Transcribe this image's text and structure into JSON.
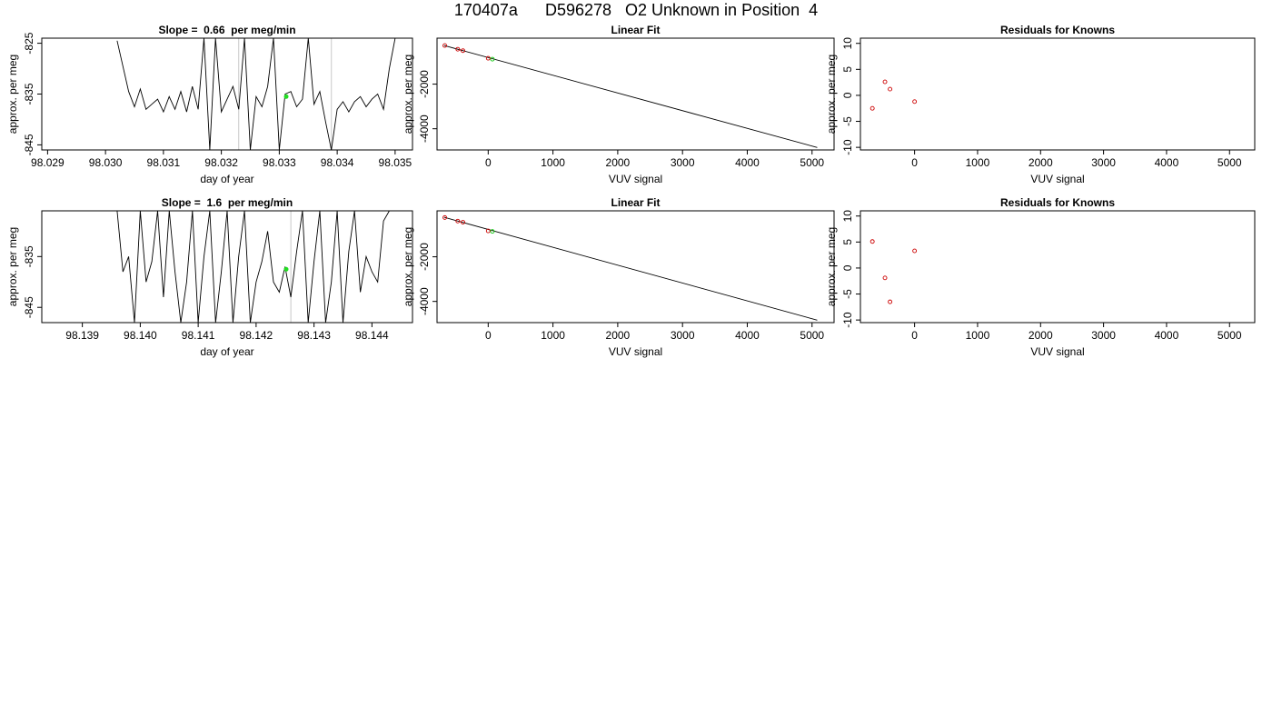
{
  "figure": {
    "title": "170407a      D596278   O2 Unknown in Position  4"
  },
  "chart_data": [
    {
      "type": "line",
      "title": "Slope =  0.66  per meg/min",
      "xlabel": "day of year",
      "ylabel": "approx. per meg",
      "xlim": [
        98.0289,
        98.0353
      ],
      "ylim": [
        -846,
        -824
      ],
      "xticks": [
        98.029,
        98.03,
        98.031,
        98.032,
        98.033,
        98.034,
        98.035
      ],
      "xtick_labels": [
        "98.029",
        "98.030",
        "98.031",
        "98.032",
        "98.033",
        "98.034",
        "98.035"
      ],
      "yticks": [
        -825,
        -835,
        -845
      ],
      "ytick_labels": [
        "-825",
        "-835",
        "-845"
      ],
      "grid": false,
      "series": [
        {
          "x": [
            98.0302,
            98.0304,
            98.0305,
            98.0306,
            98.0307,
            98.0308,
            98.0309,
            98.031,
            98.0311,
            98.0312,
            98.0313,
            98.0314,
            98.0315,
            98.0316,
            98.0317,
            98.0318,
            98.0319,
            98.032,
            98.0321,
            98.0322,
            98.0323,
            98.0324,
            98.0325,
            98.0326,
            98.0327,
            98.0328,
            98.0329,
            98.033,
            98.0331,
            98.0332,
            98.0333,
            98.0334,
            98.0335,
            98.0336,
            98.0337,
            98.0338,
            98.0339,
            98.034,
            98.0341,
            98.0342,
            98.0343,
            98.0344,
            98.0345,
            98.0346,
            98.0347,
            98.0348,
            98.0349,
            98.035
          ],
          "y": [
            -824.5,
            -834.5,
            -837.5,
            -834,
            -838,
            -837,
            -836,
            -838.5,
            -835.5,
            -838,
            -834.5,
            -838.5,
            -833.5,
            -838,
            -824,
            -846,
            -824,
            -838.5,
            -836,
            -833.5,
            -838,
            -824,
            -846,
            -835.5,
            -837.5,
            -833.5,
            -824,
            -846,
            -835,
            -834.5,
            -837.5,
            -836,
            -824,
            -837,
            -834.5,
            -840.5,
            -846,
            -838,
            -836.5,
            -838.5,
            -836.5,
            -835.5,
            -837.5,
            -836,
            -835,
            -838,
            -830,
            -824
          ]
        }
      ],
      "vlines": [
        98.0323,
        98.0339
      ],
      "highlight_point": {
        "x": 98.03312,
        "y": -835.5
      }
    },
    {
      "type": "scatter",
      "title": "Linear Fit",
      "xlabel": "VUV signal",
      "ylabel": "approx. per meg",
      "xlim": [
        -790,
        5340
      ],
      "ylim": [
        -4950,
        60
      ],
      "xticks": [
        0,
        1000,
        2000,
        3000,
        4000,
        5000
      ],
      "xtick_labels": [
        "0",
        "1000",
        "2000",
        "3000",
        "4000",
        "5000"
      ],
      "yticks": [
        -2000,
        -4000
      ],
      "ytick_labels": [
        "-2000",
        "-4000"
      ],
      "fit_line": {
        "x": [
          -680,
          5080
        ],
        "y": [
          -270,
          -4840
        ]
      },
      "known_points": {
        "x": [
          -670,
          -470,
          -390,
          0
        ],
        "y": [
          -270,
          -435,
          -500,
          -840
        ]
      },
      "unknown_point": {
        "x": 65,
        "y": -880
      }
    },
    {
      "type": "scatter",
      "title": "Residuals for Knowns",
      "xlabel": "VUV signal",
      "ylabel": "approx. per meg",
      "xlim": [
        -860,
        5400
      ],
      "ylim": [
        -10.5,
        11
      ],
      "xticks": [
        0,
        1000,
        2000,
        3000,
        4000,
        5000
      ],
      "xtick_labels": [
        "0",
        "1000",
        "2000",
        "3000",
        "4000",
        "5000"
      ],
      "yticks": [
        10,
        5,
        0,
        -5,
        -10
      ],
      "ytick_labels": [
        "10",
        "5",
        "0",
        "-5",
        "-10"
      ],
      "points": {
        "x": [
          -670,
          -470,
          -390,
          0
        ],
        "y": [
          -2.5,
          2.6,
          1.2,
          -1.2
        ]
      }
    },
    {
      "type": "line",
      "title": "Slope =  1.6  per meg/min",
      "xlabel": "day of year",
      "ylabel": "approx. per meg",
      "xlim": [
        98.1383,
        98.1447
      ],
      "ylim": [
        -848,
        -826
      ],
      "xticks": [
        98.139,
        98.14,
        98.141,
        98.142,
        98.143,
        98.144
      ],
      "xtick_labels": [
        "98.139",
        "98.140",
        "98.141",
        "98.142",
        "98.143",
        "98.144"
      ],
      "yticks": [
        -835,
        -845
      ],
      "ytick_labels": [
        "-835",
        "-845"
      ],
      "grid": false,
      "series": [
        {
          "x": [
            98.1396,
            98.1397,
            98.1398,
            98.1399,
            98.14,
            98.1401,
            98.1402,
            98.1403,
            98.1404,
            98.1405,
            98.1406,
            98.1407,
            98.1408,
            98.1409,
            98.141,
            98.1411,
            98.1412,
            98.1413,
            98.1414,
            98.1415,
            98.1416,
            98.1417,
            98.1418,
            98.1419,
            98.142,
            98.1421,
            98.1422,
            98.1423,
            98.1424,
            98.1425,
            98.1426,
            98.1427,
            98.1428,
            98.1429,
            98.143,
            98.1431,
            98.1432,
            98.1433,
            98.1434,
            98.1435,
            98.1436,
            98.1437,
            98.1438,
            98.1439,
            98.144,
            98.1441,
            98.1442,
            98.1443
          ],
          "y": [
            -826,
            -838,
            -835,
            -848,
            -826,
            -840,
            -836,
            -826,
            -843,
            -826,
            -838,
            -848,
            -840,
            -826,
            -848,
            -835,
            -826,
            -848,
            -838,
            -826,
            -848,
            -835,
            -826,
            -848,
            -840,
            -836,
            -830,
            -840,
            -842,
            -837,
            -843,
            -834,
            -826,
            -848,
            -836,
            -826,
            -848,
            -840,
            -826,
            -848,
            -834,
            -826,
            -842,
            -835,
            -838,
            -840,
            -828,
            -826
          ]
        }
      ],
      "vlines": [
        98.1426
      ],
      "highlight_point": {
        "x": 98.14252,
        "y": -837.5
      }
    },
    {
      "type": "scatter",
      "title": "Linear Fit",
      "xlabel": "VUV signal",
      "ylabel": "approx. per meg",
      "xlim": [
        -790,
        5340
      ],
      "ylim": [
        -4950,
        60
      ],
      "xticks": [
        0,
        1000,
        2000,
        3000,
        4000,
        5000
      ],
      "xtick_labels": [
        "0",
        "1000",
        "2000",
        "3000",
        "4000",
        "5000"
      ],
      "yticks": [
        -2000,
        -4000
      ],
      "ytick_labels": [
        "-2000",
        "-4000"
      ],
      "fit_line": {
        "x": [
          -680,
          5080
        ],
        "y": [
          -230,
          -4840
        ]
      },
      "known_points": {
        "x": [
          -670,
          -470,
          -390,
          0
        ],
        "y": [
          -240,
          -400,
          -450,
          -840
        ]
      },
      "unknown_point": {
        "x": 65,
        "y": -860
      }
    },
    {
      "type": "scatter",
      "title": "Residuals for Knowns",
      "xlabel": "VUV signal",
      "ylabel": "approx. per meg",
      "xlim": [
        -860,
        5400
      ],
      "ylim": [
        -10.5,
        11
      ],
      "xticks": [
        0,
        1000,
        2000,
        3000,
        4000,
        5000
      ],
      "xtick_labels": [
        "0",
        "1000",
        "2000",
        "3000",
        "4000",
        "5000"
      ],
      "yticks": [
        10,
        5,
        0,
        -5,
        -10
      ],
      "ytick_labels": [
        "10",
        "5",
        "0",
        "-5",
        "-10"
      ],
      "points": {
        "x": [
          -670,
          -470,
          -390,
          0
        ],
        "y": [
          5.1,
          -1.9,
          -6.5,
          3.3
        ]
      }
    }
  ]
}
